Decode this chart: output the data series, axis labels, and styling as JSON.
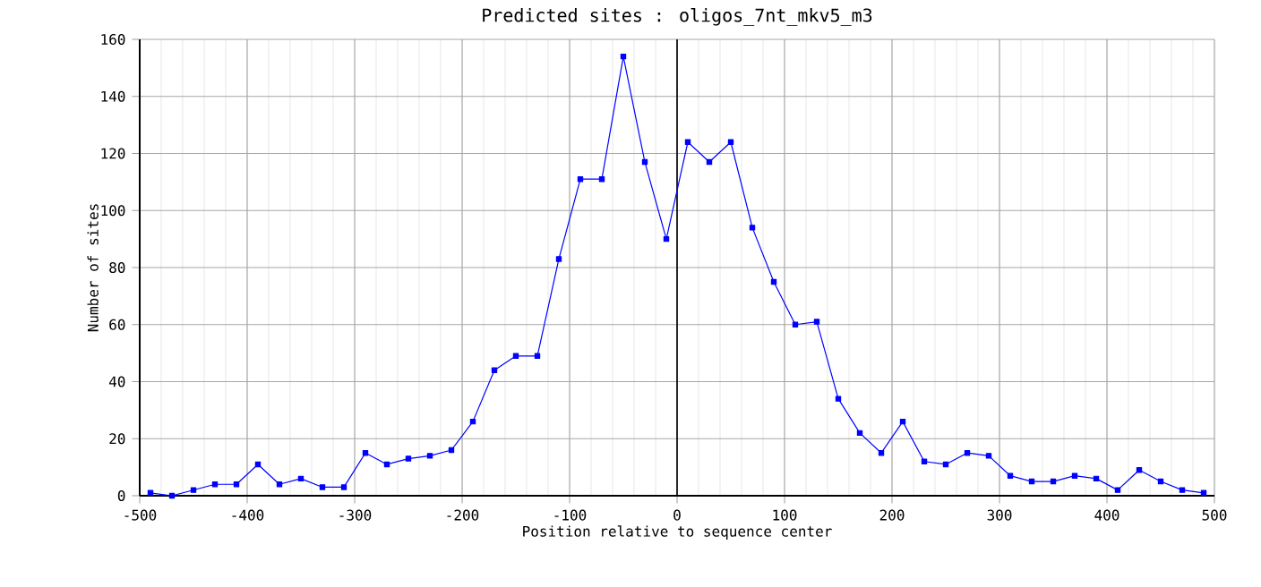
{
  "chart_data": {
    "type": "line",
    "title": "Predicted sites : oligos_7nt_mkv5_m3",
    "xlabel": "Position relative to sequence center",
    "ylabel": "Number of sites",
    "x": [
      -490,
      -470,
      -450,
      -430,
      -410,
      -390,
      -370,
      -350,
      -330,
      -310,
      -290,
      -270,
      -250,
      -230,
      -210,
      -190,
      -170,
      -150,
      -130,
      -110,
      -90,
      -70,
      -50,
      -30,
      -10,
      10,
      30,
      50,
      70,
      90,
      110,
      130,
      150,
      170,
      190,
      210,
      230,
      250,
      270,
      290,
      310,
      330,
      350,
      370,
      390,
      410,
      430,
      450,
      470,
      490
    ],
    "series": [
      {
        "color": "#0000ff",
        "values": [
          1,
          0,
          2,
          4,
          4,
          11,
          4,
          6,
          3,
          3,
          15,
          11,
          13,
          14,
          16,
          26,
          44,
          49,
          49,
          83,
          111,
          111,
          154,
          117,
          90,
          124,
          117,
          124,
          94,
          75,
          60,
          61,
          34,
          22,
          15,
          26,
          12,
          11,
          15,
          14,
          7,
          5,
          5,
          7,
          6,
          2,
          9,
          5,
          2,
          1
        ]
      }
    ],
    "xlim": [
      -500,
      500
    ],
    "ylim": [
      0,
      160
    ],
    "xticks": [
      -500,
      -400,
      -300,
      -200,
      -100,
      0,
      100,
      200,
      300,
      400,
      500
    ],
    "yticks": [
      0,
      20,
      40,
      60,
      80,
      100,
      120,
      140,
      160
    ],
    "grid": true,
    "marker": "square",
    "line_style": "solid",
    "ref_lines": [
      {
        "axis": "x",
        "value": 0,
        "color": "#000000"
      }
    ]
  }
}
